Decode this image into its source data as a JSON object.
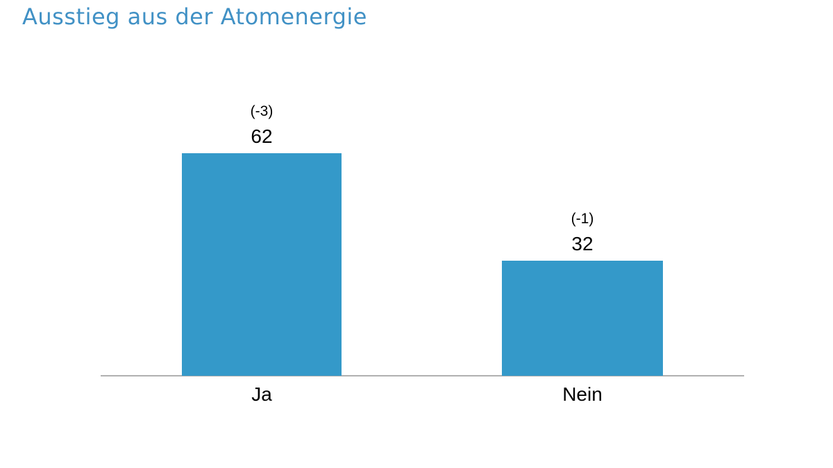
{
  "chart_data": {
    "type": "bar",
    "title": "Ausstieg aus der Atomenergie",
    "categories": [
      "Ja",
      "Nein"
    ],
    "values": [
      62,
      32
    ],
    "annotations": [
      "(-3)",
      "(-1)"
    ],
    "xlabel": "",
    "ylabel": "",
    "grid": false,
    "legend": false,
    "baseline_shown": true,
    "colors": {
      "bar": "#3499c9",
      "title": "#4191c5",
      "axis_line": "#b0b0b0",
      "label_text": "#000000"
    }
  }
}
